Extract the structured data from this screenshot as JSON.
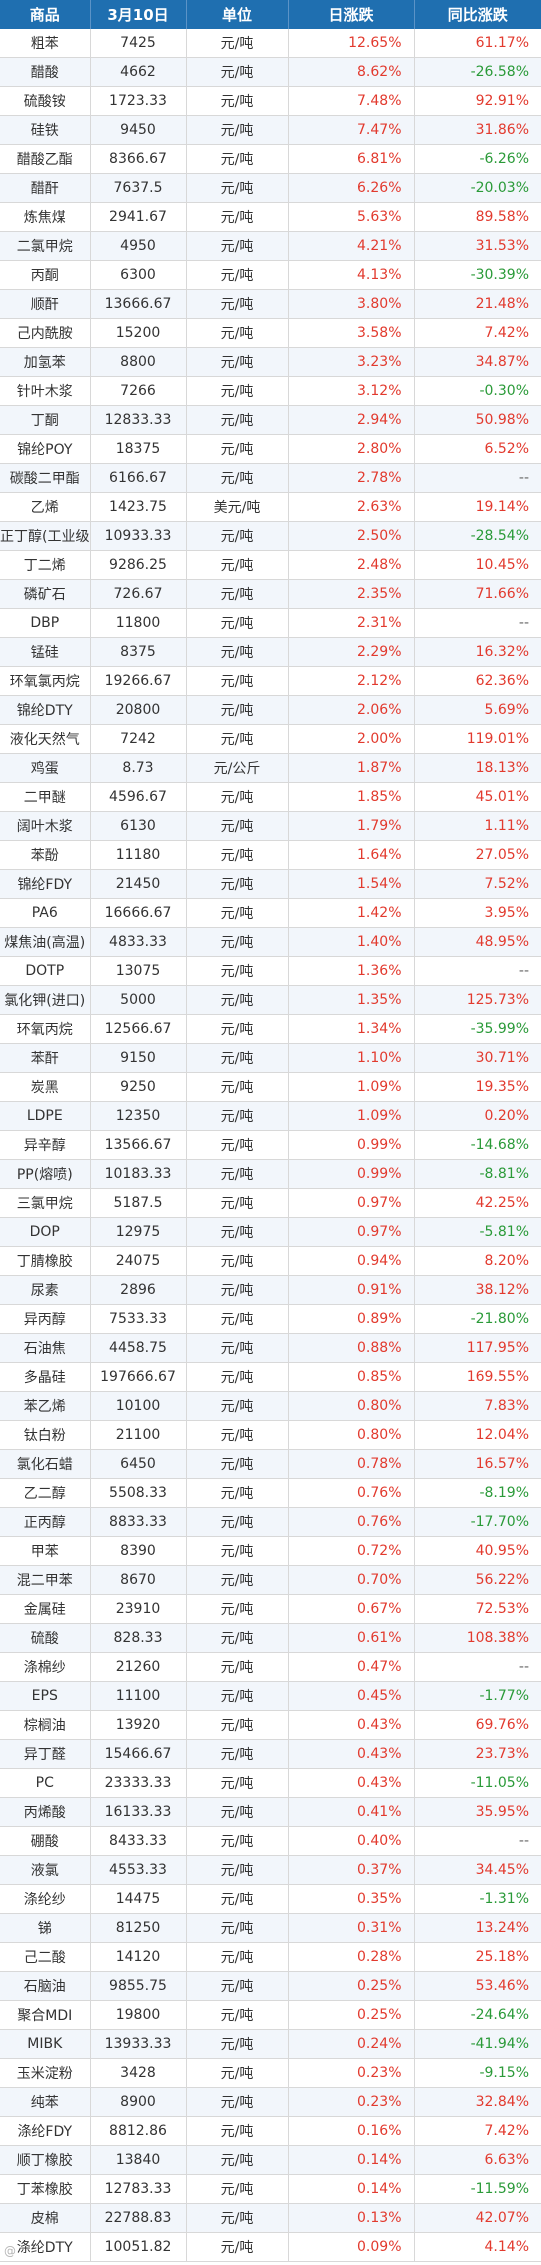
{
  "header": [
    "商品",
    "3月10日",
    "单位",
    "日涨跌",
    "同比涨跌"
  ],
  "rows": [
    [
      "粗苯",
      "7425",
      "元/吨",
      "12.65%",
      "61.17%"
    ],
    [
      "醋酸",
      "4662",
      "元/吨",
      "8.62%",
      "-26.58%"
    ],
    [
      "硫酸铵",
      "1723.33",
      "元/吨",
      "7.48%",
      "92.91%"
    ],
    [
      "硅铁",
      "9450",
      "元/吨",
      "7.47%",
      "31.86%"
    ],
    [
      "醋酸乙酯",
      "8366.67",
      "元/吨",
      "6.81%",
      "-6.26%"
    ],
    [
      "醋酐",
      "7637.5",
      "元/吨",
      "6.26%",
      "-20.03%"
    ],
    [
      "炼焦煤",
      "2941.67",
      "元/吨",
      "5.63%",
      "89.58%"
    ],
    [
      "二氯甲烷",
      "4950",
      "元/吨",
      "4.21%",
      "31.53%"
    ],
    [
      "丙酮",
      "6300",
      "元/吨",
      "4.13%",
      "-30.39%"
    ],
    [
      "顺酐",
      "13666.67",
      "元/吨",
      "3.80%",
      "21.48%"
    ],
    [
      "己内酰胺",
      "15200",
      "元/吨",
      "3.58%",
      "7.42%"
    ],
    [
      "加氢苯",
      "8800",
      "元/吨",
      "3.23%",
      "34.87%"
    ],
    [
      "针叶木浆",
      "7266",
      "元/吨",
      "3.12%",
      "-0.30%"
    ],
    [
      "丁酮",
      "12833.33",
      "元/吨",
      "2.94%",
      "50.98%"
    ],
    [
      "锦纶POY",
      "18375",
      "元/吨",
      "2.80%",
      "6.52%"
    ],
    [
      "碳酸二甲酯",
      "6166.67",
      "元/吨",
      "2.78%",
      "--"
    ],
    [
      "乙烯",
      "1423.75",
      "美元/吨",
      "2.63%",
      "19.14%"
    ],
    [
      "正丁醇(工业级)",
      "10933.33",
      "元/吨",
      "2.50%",
      "-28.54%"
    ],
    [
      "丁二烯",
      "9286.25",
      "元/吨",
      "2.48%",
      "10.45%"
    ],
    [
      "磷矿石",
      "726.67",
      "元/吨",
      "2.35%",
      "71.66%"
    ],
    [
      "DBP",
      "11800",
      "元/吨",
      "2.31%",
      "--"
    ],
    [
      "锰硅",
      "8375",
      "元/吨",
      "2.29%",
      "16.32%"
    ],
    [
      "环氧氯丙烷",
      "19266.67",
      "元/吨",
      "2.12%",
      "62.36%"
    ],
    [
      "锦纶DTY",
      "20800",
      "元/吨",
      "2.06%",
      "5.69%"
    ],
    [
      "液化天然气",
      "7242",
      "元/吨",
      "2.00%",
      "119.01%"
    ],
    [
      "鸡蛋",
      "8.73",
      "元/公斤",
      "1.87%",
      "18.13%"
    ],
    [
      "二甲醚",
      "4596.67",
      "元/吨",
      "1.85%",
      "45.01%"
    ],
    [
      "阔叶木浆",
      "6130",
      "元/吨",
      "1.79%",
      "1.11%"
    ],
    [
      "苯酚",
      "11180",
      "元/吨",
      "1.64%",
      "27.05%"
    ],
    [
      "锦纶FDY",
      "21450",
      "元/吨",
      "1.54%",
      "7.52%"
    ],
    [
      "PA6",
      "16666.67",
      "元/吨",
      "1.42%",
      "3.95%"
    ],
    [
      "煤焦油(高温)",
      "4833.33",
      "元/吨",
      "1.40%",
      "48.95%"
    ],
    [
      "DOTP",
      "13075",
      "元/吨",
      "1.36%",
      "--"
    ],
    [
      "氯化钾(进口)",
      "5000",
      "元/吨",
      "1.35%",
      "125.73%"
    ],
    [
      "环氧丙烷",
      "12566.67",
      "元/吨",
      "1.34%",
      "-35.99%"
    ],
    [
      "苯酐",
      "9150",
      "元/吨",
      "1.10%",
      "30.71%"
    ],
    [
      "炭黑",
      "9250",
      "元/吨",
      "1.09%",
      "19.35%"
    ],
    [
      "LDPE",
      "12350",
      "元/吨",
      "1.09%",
      "0.20%"
    ],
    [
      "异辛醇",
      "13566.67",
      "元/吨",
      "0.99%",
      "-14.68%"
    ],
    [
      "PP(熔喷)",
      "10183.33",
      "元/吨",
      "0.99%",
      "-8.81%"
    ],
    [
      "三氯甲烷",
      "5187.5",
      "元/吨",
      "0.97%",
      "42.25%"
    ],
    [
      "DOP",
      "12975",
      "元/吨",
      "0.97%",
      "-5.81%"
    ],
    [
      "丁腈橡胶",
      "24075",
      "元/吨",
      "0.94%",
      "8.20%"
    ],
    [
      "尿素",
      "2896",
      "元/吨",
      "0.91%",
      "38.12%"
    ],
    [
      "异丙醇",
      "7533.33",
      "元/吨",
      "0.89%",
      "-21.80%"
    ],
    [
      "石油焦",
      "4458.75",
      "元/吨",
      "0.88%",
      "117.95%"
    ],
    [
      "多晶硅",
      "197666.67",
      "元/吨",
      "0.85%",
      "169.55%"
    ],
    [
      "苯乙烯",
      "10100",
      "元/吨",
      "0.80%",
      "7.83%"
    ],
    [
      "钛白粉",
      "21100",
      "元/吨",
      "0.80%",
      "12.04%"
    ],
    [
      "氯化石蜡",
      "6450",
      "元/吨",
      "0.78%",
      "16.57%"
    ],
    [
      "乙二醇",
      "5508.33",
      "元/吨",
      "0.76%",
      "-8.19%"
    ],
    [
      "正丙醇",
      "8833.33",
      "元/吨",
      "0.76%",
      "-17.70%"
    ],
    [
      "甲苯",
      "8390",
      "元/吨",
      "0.72%",
      "40.95%"
    ],
    [
      "混二甲苯",
      "8670",
      "元/吨",
      "0.70%",
      "56.22%"
    ],
    [
      "金属硅",
      "23910",
      "元/吨",
      "0.67%",
      "72.53%"
    ],
    [
      "硫酸",
      "828.33",
      "元/吨",
      "0.61%",
      "108.38%"
    ],
    [
      "涤棉纱",
      "21260",
      "元/吨",
      "0.47%",
      "--"
    ],
    [
      "EPS",
      "11100",
      "元/吨",
      "0.45%",
      "-1.77%"
    ],
    [
      "棕榈油",
      "13920",
      "元/吨",
      "0.43%",
      "69.76%"
    ],
    [
      "异丁醛",
      "15466.67",
      "元/吨",
      "0.43%",
      "23.73%"
    ],
    [
      "PC",
      "23333.33",
      "元/吨",
      "0.43%",
      "-11.05%"
    ],
    [
      "丙烯酸",
      "16133.33",
      "元/吨",
      "0.41%",
      "35.95%"
    ],
    [
      "硼酸",
      "8433.33",
      "元/吨",
      "0.40%",
      "--"
    ],
    [
      "液氯",
      "4553.33",
      "元/吨",
      "0.37%",
      "34.45%"
    ],
    [
      "涤纶纱",
      "14475",
      "元/吨",
      "0.35%",
      "-1.31%"
    ],
    [
      "锑",
      "81250",
      "元/吨",
      "0.31%",
      "13.24%"
    ],
    [
      "己二酸",
      "14120",
      "元/吨",
      "0.28%",
      "25.18%"
    ],
    [
      "石脑油",
      "9855.75",
      "元/吨",
      "0.25%",
      "53.46%"
    ],
    [
      "聚合MDI",
      "19800",
      "元/吨",
      "0.25%",
      "-24.64%"
    ],
    [
      "MIBK",
      "13933.33",
      "元/吨",
      "0.24%",
      "-41.94%"
    ],
    [
      "玉米淀粉",
      "3428",
      "元/吨",
      "0.23%",
      "-9.15%"
    ],
    [
      "纯苯",
      "8900",
      "元/吨",
      "0.23%",
      "32.84%"
    ],
    [
      "涤纶FDY",
      "8812.86",
      "元/吨",
      "0.16%",
      "7.42%"
    ],
    [
      "顺丁橡胶",
      "13840",
      "元/吨",
      "0.14%",
      "6.63%"
    ],
    [
      "丁苯橡胶",
      "12783.33",
      "元/吨",
      "0.14%",
      "-11.59%"
    ],
    [
      "皮棉",
      "22788.83",
      "元/吨",
      "0.13%",
      "42.07%"
    ],
    [
      "涤纶DTY",
      "10051.82",
      "元/吨",
      "0.09%",
      "4.14%"
    ]
  ],
  "colors": {
    "header_bg": "#1f6fb0",
    "up": "#e23a2e",
    "down": "#2a9a38"
  },
  "watermark": "@"
}
